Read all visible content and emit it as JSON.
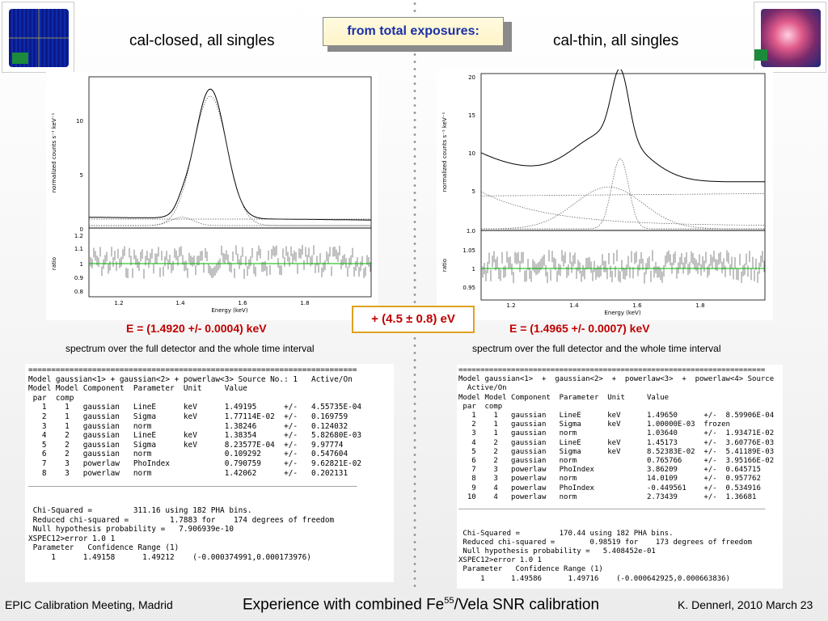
{
  "header": {
    "left_title": "cal-closed, all singles",
    "right_title": "cal-thin, all singles",
    "callout": "from total exposures:"
  },
  "result": {
    "left_energy": "E = (1.4920 +/- 0.0004) keV",
    "right_energy": "E = (1.4965 +/- 0.0007) keV",
    "difference": "+ (4.5 ± 0.8) eV",
    "left_caption": "spectrum over the full detector and the whole time interval",
    "right_caption": "spectrum over the full detector and the whole time interval"
  },
  "plots": {
    "ylabel_top": "normalized counts s⁻¹ keV⁻¹",
    "ylabel_bottom": "ratio",
    "xlabel": "Energy (keV)",
    "left": {
      "yticks_top": [
        "10",
        "5",
        "0"
      ],
      "yticks_bottom": [
        "1.2",
        "1.1",
        "1",
        "0.9",
        "0.8"
      ],
      "xticks": [
        "1.2",
        "1.4",
        "1.6",
        "1.8"
      ]
    },
    "right": {
      "yticks_top": [
        "20",
        "15",
        "10",
        "5",
        "1.0"
      ],
      "yticks_bottom": [
        "1.05",
        "1",
        "0.95"
      ],
      "xticks": [
        "1.2",
        "1.4",
        "1.6",
        "1.8"
      ]
    }
  },
  "left_terminal": {
    "lines": [
      "========================================================================",
      "Model gaussian<1> + gaussian<2> + powerlaw<3> Source No.: 1   Active/On",
      "Model Model Component  Parameter  Unit     Value",
      " par  comp",
      "   1    1   gaussian   LineE      keV      1.49195      +/-   4.55735E-04",
      "   2    1   gaussian   Sigma      keV      1.77114E-02  +/-   0.169759",
      "   3    1   gaussian   norm                1.38246      +/-   0.124032",
      "   4    2   gaussian   LineE      keV      1.38354      +/-   5.82680E-03",
      "   5    2   gaussian   Sigma      keV      8.23577E-04  +/-   9.97774",
      "   6    2   gaussian   norm                0.109292     +/-   0.547604",
      "   7    3   powerlaw   PhoIndex            0.790759     +/-   9.62821E-02",
      "   8    3   powerlaw   norm                1.42062      +/-   0.202131",
      "________________________________________________________________________",
      "",
      "",
      " Chi-Squared =         311.16 using 182 PHA bins.",
      " Reduced chi-squared =         1.7883 for    174 degrees of freedom",
      " Null hypothesis probability =   7.906939e-10",
      "XSPEC12>error 1.0 1",
      " Parameter   Confidence Range (1)",
      "     1      1.49158      1.49212    (-0.000374991,0.000173976)"
    ]
  },
  "right_terminal": {
    "lines": [
      "======================================================================",
      "Model gaussian<1>  +  gaussian<2>  +  powerlaw<3>  +  powerlaw<4> Source",
      "  Active/On",
      "Model Model Component  Parameter  Unit     Value",
      " par  comp",
      "   1    1   gaussian   LineE      keV      1.49650      +/-  8.59906E-04",
      "   2    1   gaussian   Sigma      keV      1.00000E-03  frozen",
      "   3    1   gaussian   norm                1.03640      +/-  1.93471E-02",
      "   4    2   gaussian   LineE      keV      1.45173      +/-  3.60776E-03",
      "   5    2   gaussian   Sigma      keV      8.52383E-02  +/-  5.41189E-03",
      "   6    2   gaussian   norm                0.765766     +/-  3.95166E-02",
      "   7    3   powerlaw   PhoIndex            3.86209      +/-  0.645715",
      "   8    3   powerlaw   norm                14.0109      +/-  0.957762",
      "   9    4   powerlaw   PhoIndex            -0.449561    +/-  0.534916",
      "  10    4   powerlaw   norm                2.73439      +/-  1.36681",
      "______________________________________________________________________",
      "",
      "",
      " Chi-Squared =         170.44 using 182 PHA bins.",
      " Reduced chi-squared =        0.98519 for    173 degrees of freedom",
      " Null hypothesis probability =   5.408452e-01",
      "XSPEC12>error 1.0 1",
      " Parameter   Confidence Range (1)",
      "     1      1.49586      1.49716    (-0.000642925,0.000663836)"
    ]
  },
  "footer": {
    "left": "EPIC Calibration Meeting, Madrid",
    "center_prefix": "Experience with combined Fe",
    "center_sup": "55",
    "center_suffix": "/Vela SNR calibration",
    "right": "K. Dennerl, 2010 March 23"
  },
  "colors": {
    "callout_text": "#1a2fa8",
    "result_text": "#c00000",
    "diff_border": "#e0a020",
    "ratio_line": "#00b000"
  }
}
